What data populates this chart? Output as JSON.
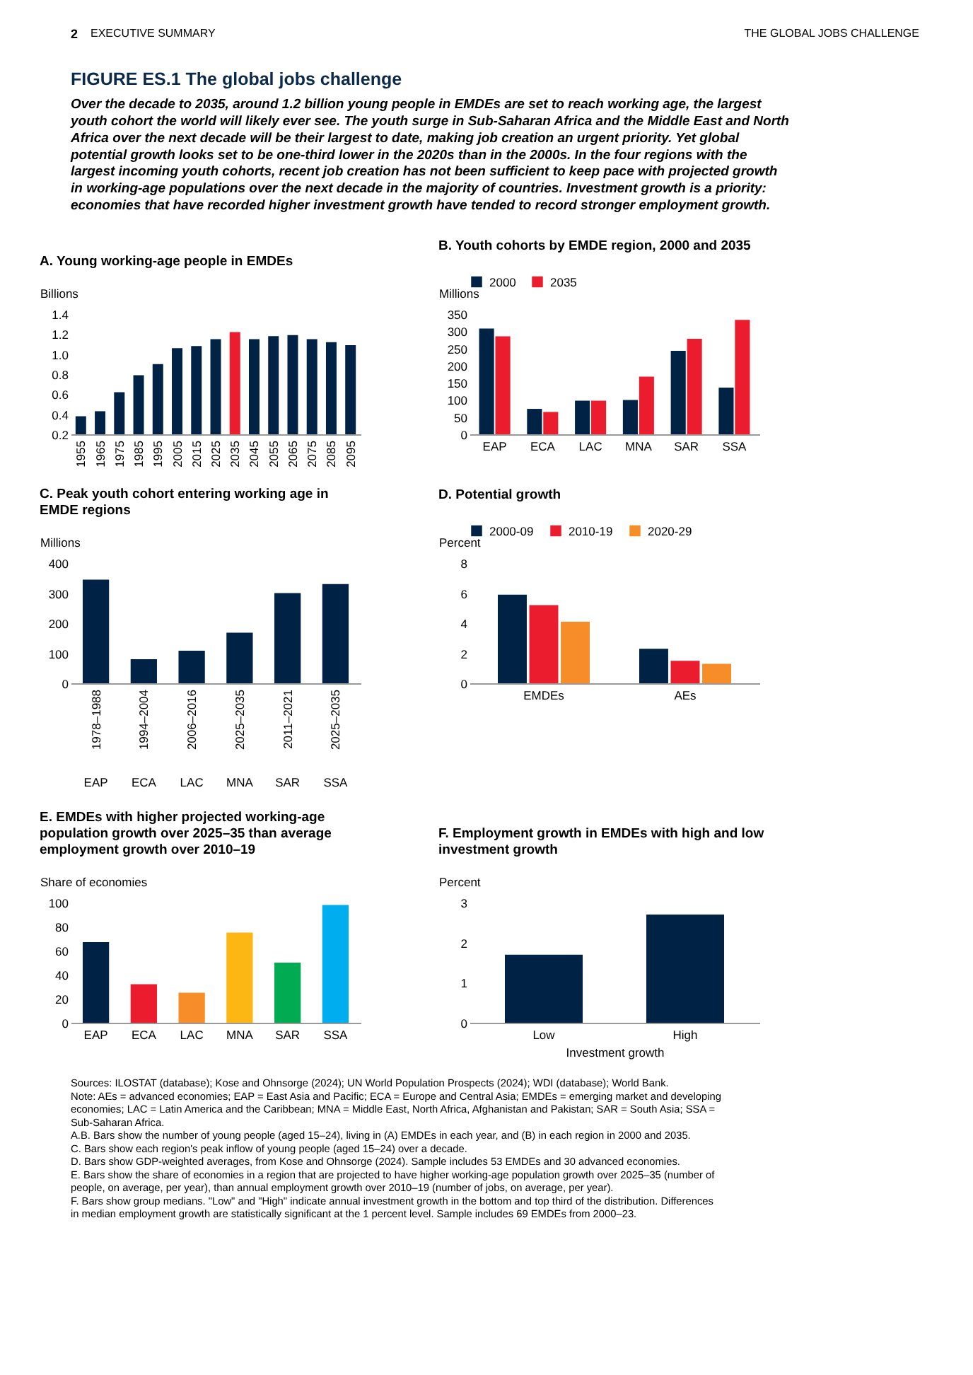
{
  "chart_data": [
    {
      "type": "other",
      "title": "FIGURE ES.1 The global jobs challenge",
      "subtitle": "Over the decade to 2035, around 1.2 billion young people in EMDEs are set to reach working age, the largest youth cohort the world will likely ever see. The youth surge in Sub-Saharan Africa and the Middle East and North Africa over the next decade will be their largest to date, making job creation an urgent priority. Yet global potential growth looks set to be one-third lower in the 2020s than in the 2000s. In the four regions with the largest incoming youth cohorts, recent job creation has not been sufficient to keep pace with projected growth in working-age populations over the next decade in the majority of countries. Investment growth is a priority: economies that have recorded higher investment growth have tended to record stronger employment growth.",
      "annotations": [
        "2",
        "EXECUTIVE SUMMARY",
        "THE GLOBAL JOBS CHALLENGE"
      ]
    },
    {
      "type": "bar",
      "title": "A. Young working-age people in EMDEs",
      "ylabel": "Billions",
      "categories": [
        "1955",
        "1965",
        "1975",
        "1985",
        "1995",
        "2005",
        "2015",
        "2025",
        "2035",
        "2045",
        "2055",
        "2065",
        "2075",
        "2085",
        "2095"
      ],
      "values": [
        0.38,
        0.43,
        0.62,
        0.79,
        0.9,
        1.06,
        1.08,
        1.15,
        1.22,
        1.15,
        1.18,
        1.19,
        1.15,
        1.12,
        1.09
      ],
      "colors": [
        "#002345",
        "#002345",
        "#002345",
        "#002345",
        "#002345",
        "#002345",
        "#002345",
        "#002345",
        "#eb1c2d",
        "#002345",
        "#002345",
        "#002345",
        "#002345",
        "#002345",
        "#002345"
      ],
      "ylim": [
        0.2,
        1.4
      ],
      "yticks": [
        0.2,
        0.4,
        0.6,
        0.8,
        {
          "value": 1,
          "label": "1.0"
        },
        1.2,
        1.4
      ]
    },
    {
      "type": "bar",
      "title": "B. Youth cohorts by EMDE region, 2000 and 2035",
      "ylabel": "Millions",
      "categories": [
        "EAP",
        "ECA",
        "LAC",
        "MNA",
        "SAR",
        "SSA"
      ],
      "series": [
        {
          "name": "2000",
          "color": "#002345",
          "values": [
            308,
            74,
            98,
            100,
            243,
            136
          ]
        },
        {
          "name": "2035",
          "color": "#eb1c2d",
          "values": [
            285,
            65,
            98,
            168,
            278,
            333
          ]
        }
      ],
      "ylim": [
        0,
        350
      ],
      "yticks": [
        0,
        50,
        100,
        150,
        200,
        250,
        300,
        350
      ],
      "legend": "top"
    },
    {
      "type": "bar",
      "title": "C. Peak youth cohort entering working age in EMDE regions",
      "ylabel": "Millions",
      "categories": [
        "1978–1988",
        "1994–2004",
        "2006–2016",
        "2025–2035",
        "2011–2021",
        "2025–2035"
      ],
      "values": [
        345,
        80,
        108,
        168,
        300,
        330
      ],
      "colors": [
        "#002345",
        "#002345",
        "#002345",
        "#002345",
        "#002345",
        "#002345"
      ],
      "ylim": [
        0,
        400
      ],
      "yticks": [
        0,
        100,
        200,
        300,
        400
      ],
      "annotations": [
        "EAP",
        "ECA",
        "LAC",
        "MNA",
        "SAR",
        "SSA"
      ]
    },
    {
      "type": "bar",
      "title": "D. Potential growth",
      "ylabel": "Percent",
      "categories": [
        "EMDEs",
        "AEs"
      ],
      "series": [
        {
          "name": "2000-09",
          "color": "#002345",
          "values": [
            5.9,
            2.3
          ]
        },
        {
          "name": "2010-19",
          "color": "#eb1c2d",
          "values": [
            5.2,
            1.5
          ]
        },
        {
          "name": "2020-29",
          "color": "#f78d28",
          "values": [
            4.1,
            1.3
          ]
        }
      ],
      "ylim": [
        0,
        8
      ],
      "yticks": [
        0,
        2,
        4,
        6,
        8
      ],
      "legend": "top"
    },
    {
      "type": "bar",
      "title": "E. EMDEs with higher projected working-age population growth over 2025–35 than average employment growth over 2010–19",
      "ylabel": "Share of economies",
      "categories": [
        "EAP",
        "ECA",
        "LAC",
        "MNA",
        "SAR",
        "SSA"
      ],
      "values": [
        67,
        32,
        25,
        75,
        50,
        98
      ],
      "colors": [
        "#002345",
        "#eb1c2d",
        "#f78d28",
        "#fdb714",
        "#00ab51",
        "#00adef"
      ],
      "ylim": [
        0,
        100
      ],
      "yticks": [
        0,
        20,
        40,
        60,
        80,
        100
      ]
    },
    {
      "type": "bar",
      "title": "F. Employment growth in EMDEs with high and low investment growth",
      "ylabel": "Percent",
      "xlabel": "Investment growth",
      "categories": [
        "Low",
        "High"
      ],
      "values": [
        1.7,
        2.7
      ],
      "colors": [
        "#002345",
        "#002345"
      ],
      "ylim": [
        0,
        3
      ],
      "yticks": [
        0,
        1,
        2,
        3
      ]
    },
    {
      "type": "other",
      "annotations": [
        "Sources: ILOSTAT (database); Kose and Ohnsorge (2024); UN World Population Prospects (2024); WDI (database); World Bank.",
        "Note: AEs = advanced economies; EAP = East Asia and Pacific; ECA = Europe and Central Asia; EMDEs = emerging market and developing economies; LAC = Latin America and the Caribbean; MNA = Middle East, North Africa, Afghanistan and Pakistan; SAR = South Asia; SSA = Sub-Saharan Africa.",
        "A.B. Bars show the number of young people (aged 15–24), living in (A) EMDEs in each year, and (B) in each region in 2000 and 2035.",
        "C. Bars show each region's peak inflow of young people (aged 15–24) over a decade.",
        "D. Bars show GDP-weighted averages, from Kose and Ohnsorge (2024). Sample includes 53 EMDEs and 30 advanced economies.",
        "E. Bars show the share of economies in a region that are projected to have higher working-age population growth over 2025–35 (number of people, on average, per year), than annual employment growth over 2010–19 (number of jobs, on average, per year).",
        "F. Bars show group medians. \"Low\" and \"High\" indicate annual investment growth in the bottom and top third of the distribution. Differences in median employment growth are statistically significant at the 1 percent level. Sample includes 69 EMDEs from 2000–23."
      ]
    }
  ]
}
